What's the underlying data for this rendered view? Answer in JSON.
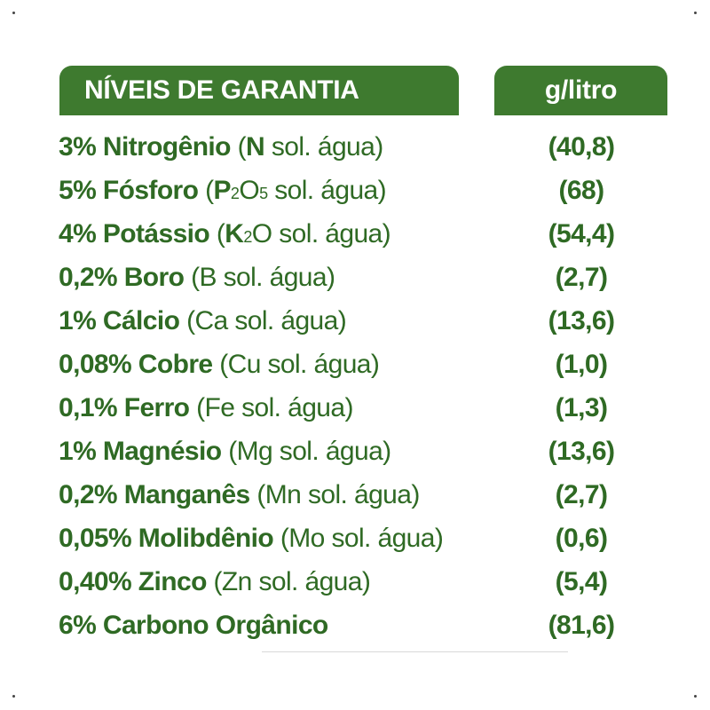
{
  "header": {
    "left_title": "NÍVEIS DE GARANTIA",
    "right_title": "g/litro"
  },
  "rows": [
    {
      "pct": "3% Nitrogênio",
      "paren_open": "(",
      "element": "N",
      "solubility": " sol. água)",
      "value": "(40,8)"
    },
    {
      "pct": "5% Fósforo",
      "paren_open": "(",
      "element": "P",
      "sub1": "2",
      "mid": "O",
      "sub2": "5",
      "solubility": " sol. água)",
      "value": "(68)"
    },
    {
      "pct": "4% Potássio",
      "paren_open": "(",
      "element": "K",
      "sub1": "2",
      "mid": "O",
      "solubility": " sol. água)",
      "value": "(54,4)"
    },
    {
      "pct": "0,2% Boro",
      "detail": "(B sol. água)",
      "value": "(2,7)"
    },
    {
      "pct": "1% Cálcio",
      "detail": "(Ca sol. água)",
      "value": "(13,6)"
    },
    {
      "pct": "0,08% Cobre",
      "detail": "(Cu sol. água)",
      "value": "(1,0)"
    },
    {
      "pct": "0,1% Ferro",
      "detail": "(Fe sol. água)",
      "value": "(1,3)"
    },
    {
      "pct": "1% Magnésio",
      "detail": "(Mg sol. água)",
      "value": "(13,6)"
    },
    {
      "pct": "0,2% Manganês",
      "detail": "(Mn sol. água)",
      "value": "(2,7)"
    },
    {
      "pct": "0,05% Molibdênio",
      "detail": "(Mo sol. água)",
      "value": "(0,6)"
    },
    {
      "pct": "0,40% Zinco",
      "detail": "(Zn sol. água)",
      "value": "(5,4)"
    },
    {
      "pct": "6% Carbono Orgânico",
      "detail": "",
      "value": "(81,6)"
    }
  ],
  "colors": {
    "header_bg": "#3e7a2f",
    "text_green": "#2f6a24"
  }
}
